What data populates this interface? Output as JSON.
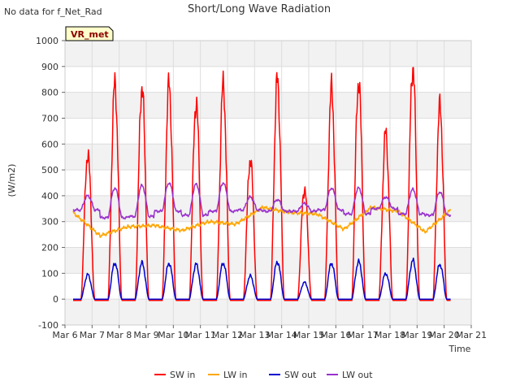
{
  "header": {
    "no_data": "No data for f_Net_Rad",
    "badge": "VR_met"
  },
  "chart_data": {
    "type": "line",
    "title": "Short/Long Wave Radiation",
    "xlabel": "Time",
    "ylabel": "(W/m2)",
    "ylim": [
      -100,
      1000
    ],
    "yticks": [
      -100,
      0,
      100,
      200,
      300,
      400,
      500,
      600,
      700,
      800,
      900,
      1000
    ],
    "xlim": [
      "2024-03-06",
      "2024-03-21"
    ],
    "xtick_labels": [
      "Mar 6",
      "Mar 7",
      "Mar 8",
      "Mar 9",
      "Mar 10",
      "Mar 11",
      "Mar 12",
      "Mar 13",
      "Mar 14",
      "Mar 15",
      "Mar 16",
      "Mar 17",
      "Mar 18",
      "Mar 19",
      "Mar 20",
      "Mar 21"
    ],
    "grid": true,
    "legend_position": "bottom",
    "series": [
      {
        "name": "SW in",
        "color": "#ff0000",
        "days": [
          "Mar 6",
          "Mar 7",
          "Mar 8",
          "Mar 9",
          "Mar 10",
          "Mar 11",
          "Mar 12",
          "Mar 13",
          "Mar 14",
          "Mar 15",
          "Mar 16",
          "Mar 17",
          "Mar 18",
          "Mar 19",
          "Mar 20"
        ],
        "daily_peak": [
          565,
          830,
          825,
          830,
          765,
          825,
          545,
          845,
          430,
          815,
          845,
          640,
          905,
          745,
          0
        ],
        "night_value": -5
      },
      {
        "name": "LW in",
        "color": "#ffa500",
        "days": [
          "Mar 6",
          "Mar 7",
          "Mar 8",
          "Mar 9",
          "Mar 10",
          "Mar 11",
          "Mar 12",
          "Mar 13",
          "Mar 14",
          "Mar 15",
          "Mar 16",
          "Mar 17",
          "Mar 18",
          "Mar 19",
          "Mar 20"
        ],
        "daily_value": [
          335,
          245,
          280,
          285,
          265,
          300,
          290,
          355,
          335,
          330,
          270,
          355,
          340,
          260,
          350
        ]
      },
      {
        "name": "SW out",
        "color": "#0000cd",
        "days": [
          "Mar 6",
          "Mar 7",
          "Mar 8",
          "Mar 9",
          "Mar 10",
          "Mar 11",
          "Mar 12",
          "Mar 13",
          "Mar 14",
          "Mar 15",
          "Mar 16",
          "Mar 17",
          "Mar 18",
          "Mar 19",
          "Mar 20"
        ],
        "daily_peak": [
          95,
          140,
          140,
          140,
          135,
          140,
          90,
          145,
          65,
          140,
          145,
          100,
          150,
          135,
          0
        ],
        "night_value": 0
      },
      {
        "name": "LW out",
        "color": "#9932cc",
        "days": [
          "Mar 6",
          "Mar 7",
          "Mar 8",
          "Mar 9",
          "Mar 10",
          "Mar 11",
          "Mar 12",
          "Mar 13",
          "Mar 14",
          "Mar 15",
          "Mar 16",
          "Mar 17",
          "Mar 18",
          "Mar 19",
          "Mar 20"
        ],
        "daily_peak": [
          400,
          430,
          440,
          450,
          445,
          450,
          395,
          385,
          370,
          430,
          430,
          395,
          425,
          415,
          355
        ],
        "night_value": [
          345,
          315,
          320,
          340,
          325,
          340,
          345,
          340,
          340,
          345,
          330,
          350,
          330,
          325,
          350
        ]
      }
    ]
  }
}
